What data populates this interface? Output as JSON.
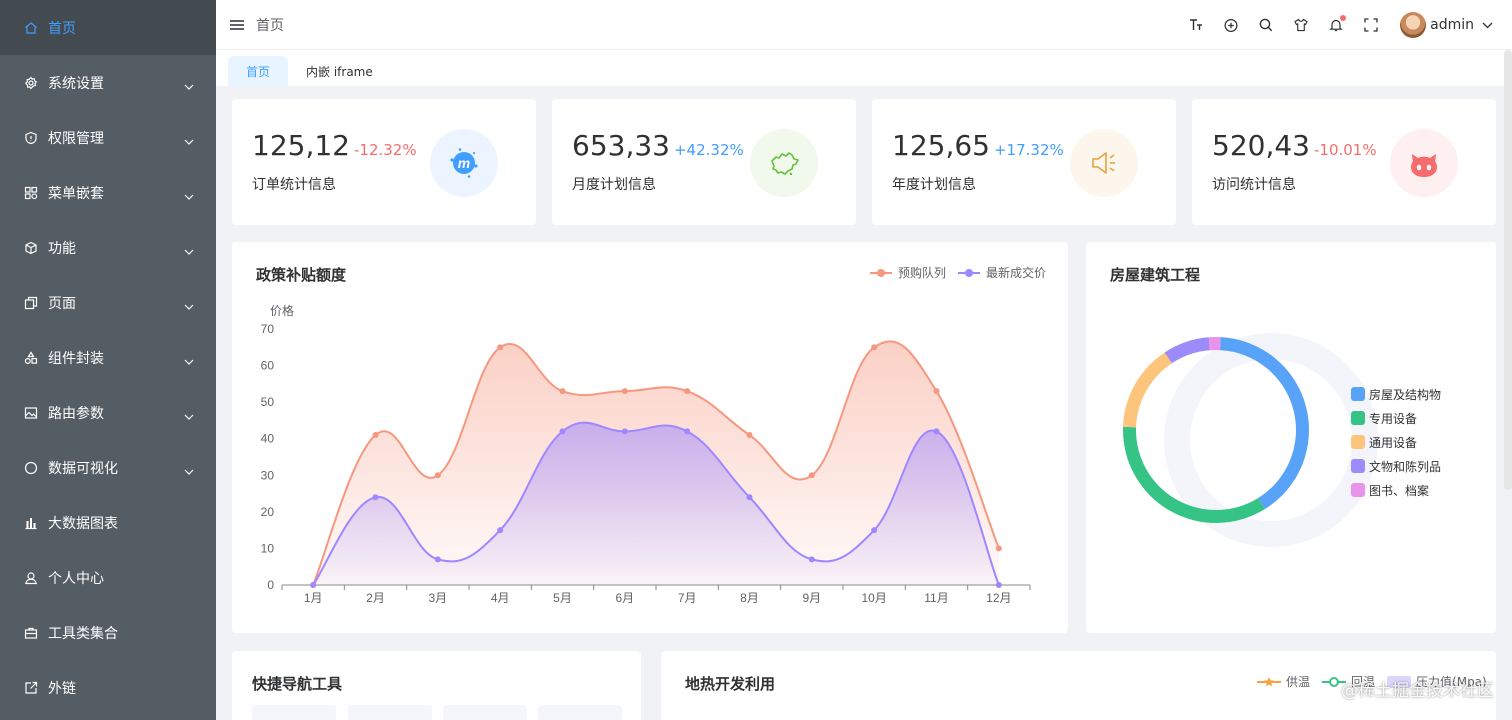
{
  "sidebar": {
    "items": [
      {
        "label": "首页",
        "icon": "home-icon",
        "expandable": false,
        "active": true
      },
      {
        "label": "系统设置",
        "icon": "gear-icon",
        "expandable": true
      },
      {
        "label": "权限管理",
        "icon": "shield-icon",
        "expandable": true
      },
      {
        "label": "菜单嵌套",
        "icon": "grid-icon",
        "expandable": true
      },
      {
        "label": "功能",
        "icon": "cube-icon",
        "expandable": true
      },
      {
        "label": "页面",
        "icon": "copy-icon",
        "expandable": true
      },
      {
        "label": "组件封装",
        "icon": "shapes-icon",
        "expandable": true
      },
      {
        "label": "路由参数",
        "icon": "picture-icon",
        "expandable": true
      },
      {
        "label": "数据可视化",
        "icon": "chat-icon",
        "expandable": true
      },
      {
        "label": "大数据图表",
        "icon": "bar-chart-icon",
        "expandable": false
      },
      {
        "label": "个人中心",
        "icon": "user-icon",
        "expandable": false
      },
      {
        "label": "工具类集合",
        "icon": "toolbox-icon",
        "expandable": false
      },
      {
        "label": "外链",
        "icon": "external-link-icon",
        "expandable": false
      }
    ]
  },
  "header": {
    "breadcrumb": "首页",
    "username": "admin",
    "tools": [
      "font-size-icon",
      "locale-icon",
      "search-icon",
      "tshirt-icon",
      "bell-icon",
      "fullscreen-icon"
    ]
  },
  "tabs": [
    {
      "label": "首页",
      "active": true
    },
    {
      "label": "内嵌 iframe",
      "active": false
    }
  ],
  "stats": [
    {
      "value": "125,12",
      "change": "-12.32%",
      "label": "订单统计信息",
      "trend": "down",
      "icon": "meetup-icon",
      "color": "#409eff",
      "bg": "#ecf5ff"
    },
    {
      "value": "653,33",
      "change": "+42.32%",
      "label": "月度计划信息",
      "trend": "up",
      "icon": "china-map-icon",
      "color": "#67c23a",
      "bg": "#f0f9eb"
    },
    {
      "value": "125,65",
      "change": "+17.32%",
      "label": "年度计划信息",
      "trend": "up",
      "icon": "speaker-icon",
      "color": "#e6a23c",
      "bg": "#fdf6ec"
    },
    {
      "value": "520,43",
      "change": "-10.01%",
      "label": "访问统计信息",
      "trend": "down",
      "icon": "github-cat-icon",
      "color": "#f56c6c",
      "bg": "#fef0f0"
    }
  ],
  "policy_chart": {
    "title": "政策补贴额度",
    "ylabel": "价格",
    "legend": [
      "预购队列",
      "最新成交价"
    ]
  },
  "building_chart": {
    "title": "房屋建筑工程"
  },
  "quick_nav": {
    "title": "快捷导航工具"
  },
  "geothermal": {
    "title": "地热开发利用",
    "legend": [
      "供温",
      "回温",
      "压力值(Mpa)"
    ]
  },
  "watermark": "@稀土掘金技术社区",
  "chart_data": [
    {
      "type": "area",
      "title": "政策补贴额度",
      "ylabel": "价格",
      "categories": [
        "1月",
        "2月",
        "3月",
        "4月",
        "5月",
        "6月",
        "7月",
        "8月",
        "9月",
        "10月",
        "11月",
        "12月"
      ],
      "ylim": [
        0,
        70
      ],
      "yticks": [
        0,
        10,
        20,
        30,
        40,
        50,
        60,
        70
      ],
      "series": [
        {
          "name": "预购队列",
          "color": "#f6977f",
          "values": [
            0,
            41,
            30,
            65,
            53,
            53,
            53,
            41,
            30,
            65,
            53,
            10
          ]
        },
        {
          "name": "最新成交价",
          "color": "#9e87ff",
          "values": [
            0,
            24,
            7,
            15,
            42,
            42,
            42,
            24,
            7,
            15,
            42,
            0
          ]
        }
      ],
      "legend_position": "top-right",
      "grid": false
    },
    {
      "type": "pie",
      "title": "房屋建筑工程",
      "categories": [
        "房屋及结构物",
        "专用设备",
        "通用设备",
        "文物和陈列品",
        "图书、档案"
      ],
      "values": [
        40,
        34,
        15,
        8,
        2
      ],
      "colors": [
        "#58a3f7",
        "#36c486",
        "#fdc57b",
        "#9c8bf8",
        "#e993eb"
      ],
      "legend_position": "right"
    }
  ]
}
